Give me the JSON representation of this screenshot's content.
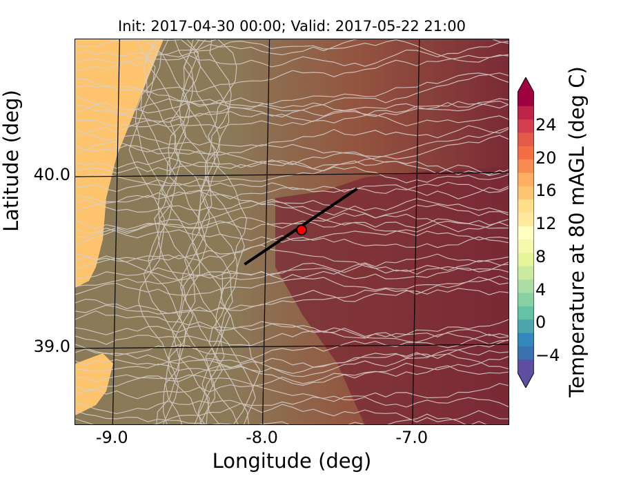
{
  "title": "Init: 2017-04-30 00:00; Valid: 2017-05-22 21:00",
  "x_axis": {
    "label": "Longitude (deg)",
    "range": [
      -9.25,
      -6.35
    ],
    "ticks": [
      {
        "value": -9.0,
        "label": "-9.0"
      },
      {
        "value": -8.0,
        "label": "-8.0"
      },
      {
        "value": -7.0,
        "label": "-7.0"
      }
    ]
  },
  "y_axis": {
    "label": "Latitude (deg)",
    "range": [
      38.55,
      40.8
    ],
    "ticks": [
      {
        "value": 39.0,
        "label": "39.0"
      },
      {
        "value": 40.0,
        "label": "40.0"
      }
    ]
  },
  "colorbar": {
    "label": "Temperature at 80 mAGL (deg C)",
    "range": [
      -6,
      28
    ],
    "extend": "both",
    "ticks": [
      {
        "value": -4,
        "label": "−4"
      },
      {
        "value": 0,
        "label": "0"
      },
      {
        "value": 4,
        "label": "4"
      },
      {
        "value": 8,
        "label": "8"
      },
      {
        "value": 12,
        "label": "12"
      },
      {
        "value": 16,
        "label": "16"
      },
      {
        "value": 20,
        "label": "20"
      },
      {
        "value": 24,
        "label": "24"
      }
    ],
    "colors": [
      "#5e4fa2",
      "#3c71b1",
      "#3288bd",
      "#4ea5b0",
      "#66c2a5",
      "#88d1a4",
      "#abdda4",
      "#cbe9a0",
      "#e6f598",
      "#f4faac",
      "#ffffbf",
      "#fee99d",
      "#fee08b",
      "#fdc472",
      "#fdae61",
      "#f88d52",
      "#f46d43",
      "#e45a49",
      "#d53e4f",
      "#bd2449",
      "#9e0142"
    ]
  },
  "cross_section": {
    "start": {
      "lon": -8.12,
      "lat": 39.49
    },
    "end": {
      "lon": -7.37,
      "lat": 39.93
    },
    "point": {
      "lon": -7.74,
      "lat": 39.69
    },
    "line_color": "#000000",
    "point_color": "#ff0000"
  },
  "field_colors": {
    "ocean": "#fdc46d",
    "coast": "#8a7a58",
    "mid": "#94543f",
    "east": "#7a2a35",
    "contour": "#d8d0cc"
  }
}
